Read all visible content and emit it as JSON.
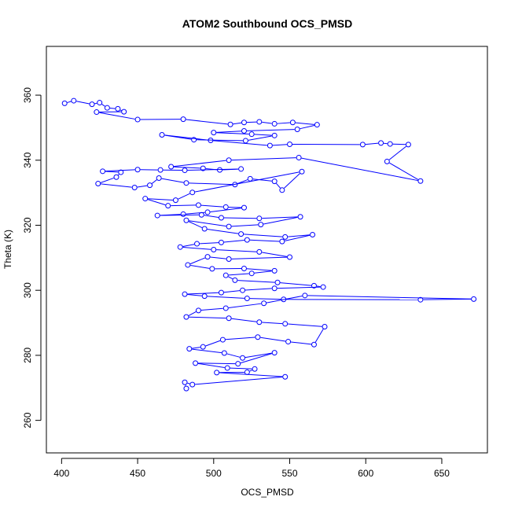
{
  "chart_data": {
    "type": "scatter",
    "title": "ATOM2 Southbound OCS_PMSD",
    "xlabel": "OCS_PMSD",
    "ylabel": "Theta (K)",
    "xlim": [
      390,
      680
    ],
    "ylim": [
      250,
      375
    ],
    "xticks": [
      400,
      450,
      500,
      550,
      600,
      650
    ],
    "yticks": [
      260,
      280,
      300,
      320,
      340,
      360
    ],
    "grid": false,
    "legend": "none",
    "series": [
      {
        "color": "#0000ff",
        "marker": "open-circle",
        "connected": true,
        "points": [
          [
            402,
            357.5
          ],
          [
            408,
            358.3
          ],
          [
            420,
            357.2
          ],
          [
            425,
            357.7
          ],
          [
            430,
            356.1
          ],
          [
            437,
            355.8
          ],
          [
            441,
            354.9
          ],
          [
            423,
            354.8
          ],
          [
            450,
            352.5
          ],
          [
            480,
            352.6
          ],
          [
            511,
            351.0
          ],
          [
            520,
            351.6
          ],
          [
            530,
            351.8
          ],
          [
            540,
            351.2
          ],
          [
            552,
            351.6
          ],
          [
            568,
            350.9
          ],
          [
            555,
            349.5
          ],
          [
            520,
            349.0
          ],
          [
            500,
            348.5
          ],
          [
            525,
            348.0
          ],
          [
            540,
            347.6
          ],
          [
            521,
            346.0
          ],
          [
            487,
            346.3
          ],
          [
            466,
            347.8
          ],
          [
            498,
            346.1
          ],
          [
            537,
            344.5
          ],
          [
            550,
            344.9
          ],
          [
            598,
            344.8
          ],
          [
            610,
            345.3
          ],
          [
            616,
            345.0
          ],
          [
            628,
            344.8
          ],
          [
            614,
            339.6
          ],
          [
            636,
            333.6
          ],
          [
            556,
            340.8
          ],
          [
            510,
            340.0
          ],
          [
            472,
            338.0
          ],
          [
            493,
            337.5
          ],
          [
            504,
            337.0
          ],
          [
            518,
            337.3
          ],
          [
            481,
            336.9
          ],
          [
            465,
            337.0
          ],
          [
            450,
            337.1
          ],
          [
            427,
            336.6
          ],
          [
            439,
            336.3
          ],
          [
            436,
            334.8
          ],
          [
            424,
            332.8
          ],
          [
            448,
            331.6
          ],
          [
            458,
            332.3
          ],
          [
            464,
            334.5
          ],
          [
            482,
            333.0
          ],
          [
            514,
            332.5
          ],
          [
            524,
            334.3
          ],
          [
            540,
            333.5
          ],
          [
            545,
            330.8
          ],
          [
            558,
            336.5
          ],
          [
            486,
            330.1
          ],
          [
            475,
            327.7
          ],
          [
            455,
            328.2
          ],
          [
            470,
            326.0
          ],
          [
            490,
            326.2
          ],
          [
            508,
            325.6
          ],
          [
            520,
            325.4
          ],
          [
            496,
            324.0
          ],
          [
            480,
            323.4
          ],
          [
            463,
            323.0
          ],
          [
            492,
            323.2
          ],
          [
            505,
            322.3
          ],
          [
            530,
            322.1
          ],
          [
            557,
            322.6
          ],
          [
            531,
            320.2
          ],
          [
            510,
            319.6
          ],
          [
            482,
            321.5
          ],
          [
            494,
            318.9
          ],
          [
            518,
            317.3
          ],
          [
            547,
            316.4
          ],
          [
            565,
            317.1
          ],
          [
            545,
            315.0
          ],
          [
            522,
            315.5
          ],
          [
            505,
            314.7
          ],
          [
            489,
            314.3
          ],
          [
            478,
            313.3
          ],
          [
            500,
            312.5
          ],
          [
            530,
            311.8
          ],
          [
            550,
            310.2
          ],
          [
            510,
            309.6
          ],
          [
            496,
            310.3
          ],
          [
            483,
            307.8
          ],
          [
            499,
            306.6
          ],
          [
            520,
            306.7
          ],
          [
            540,
            306.0
          ],
          [
            525,
            305.2
          ],
          [
            508,
            304.6
          ],
          [
            514,
            303.1
          ],
          [
            542,
            302.4
          ],
          [
            566,
            301.4
          ],
          [
            572,
            301.0
          ],
          [
            540,
            300.6
          ],
          [
            519,
            300.0
          ],
          [
            505,
            299.3
          ],
          [
            481,
            298.8
          ],
          [
            494,
            298.2
          ],
          [
            522,
            297.5
          ],
          [
            546,
            297.2
          ],
          [
            636,
            297.1
          ],
          [
            671,
            297.3
          ],
          [
            560,
            298.4
          ],
          [
            533,
            296.0
          ],
          [
            508,
            294.5
          ],
          [
            490,
            293.8
          ],
          [
            482,
            291.8
          ],
          [
            510,
            291.4
          ],
          [
            530,
            290.2
          ],
          [
            547,
            289.7
          ],
          [
            573,
            288.8
          ],
          [
            566,
            283.3
          ],
          [
            549,
            284.2
          ],
          [
            529,
            285.6
          ],
          [
            506,
            284.8
          ],
          [
            493,
            282.6
          ],
          [
            484,
            282.0
          ],
          [
            507,
            280.7
          ],
          [
            519,
            279.2
          ],
          [
            540,
            280.8
          ],
          [
            516,
            277.4
          ],
          [
            488,
            277.6
          ],
          [
            509,
            276.1
          ],
          [
            527,
            275.8
          ],
          [
            522,
            274.8
          ],
          [
            502,
            274.7
          ],
          [
            547,
            273.4
          ],
          [
            486,
            271.0
          ],
          [
            481,
            271.7
          ],
          [
            482,
            269.8
          ]
        ]
      }
    ]
  }
}
